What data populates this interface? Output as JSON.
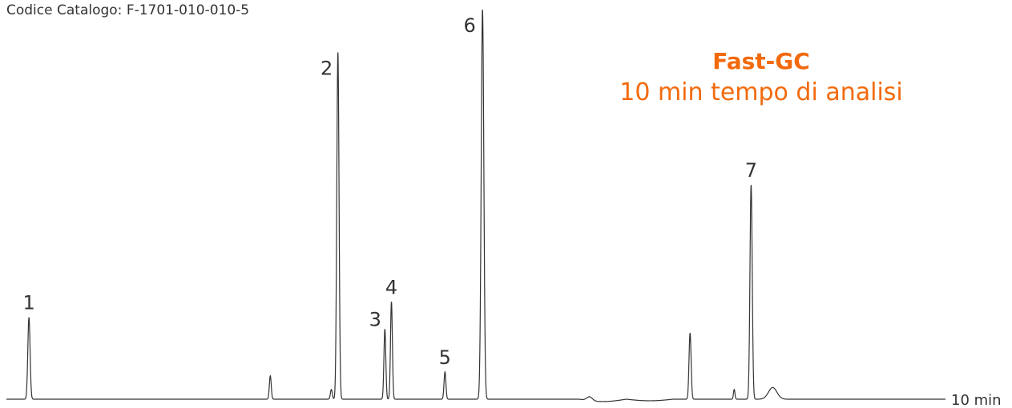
{
  "header": {
    "catalog": "Codice Catalogo: F-1701-010-010-5"
  },
  "title": {
    "bold": "Fast-GC",
    "subtitle": "10 min tempo di analisi"
  },
  "colors": {
    "accent": "#f26a0d",
    "trace": "#333333"
  },
  "chart_data": {
    "type": "line",
    "x_unit_label": "10 min",
    "xlim": [
      0,
      10
    ],
    "ylim": [
      0,
      100
    ],
    "grid": false,
    "baseline_drift": [
      {
        "from": 6.1,
        "to": 6.6,
        "amp": -0.6
      },
      {
        "from": 6.6,
        "to": 7.1,
        "amp": -0.4
      }
    ],
    "peaks": [
      {
        "label": "1",
        "rt": 0.24,
        "height": 21,
        "width": 0.012
      },
      {
        "label": "",
        "rt": 2.81,
        "height": 6,
        "width": 0.01
      },
      {
        "label": "",
        "rt": 3.46,
        "height": 2.5,
        "width": 0.01
      },
      {
        "label": "2",
        "rt": 3.53,
        "height": 89,
        "width": 0.012
      },
      {
        "label": "3",
        "rt": 4.03,
        "height": 18,
        "width": 0.01
      },
      {
        "label": "4",
        "rt": 4.1,
        "height": 25,
        "width": 0.01
      },
      {
        "label": "5",
        "rt": 4.67,
        "height": 7,
        "width": 0.01
      },
      {
        "label": "6",
        "rt": 5.07,
        "height": 100,
        "width": 0.014
      },
      {
        "label": "",
        "rt": 6.21,
        "height": 1,
        "width": 0.03
      },
      {
        "label": "",
        "rt": 7.28,
        "height": 17,
        "width": 0.011
      },
      {
        "label": "",
        "rt": 7.75,
        "height": 2.5,
        "width": 0.008
      },
      {
        "label": "7",
        "rt": 7.93,
        "height": 55,
        "width": 0.012
      },
      {
        "label": "",
        "rt": 8.16,
        "height": 3,
        "width": 0.045
      }
    ]
  }
}
